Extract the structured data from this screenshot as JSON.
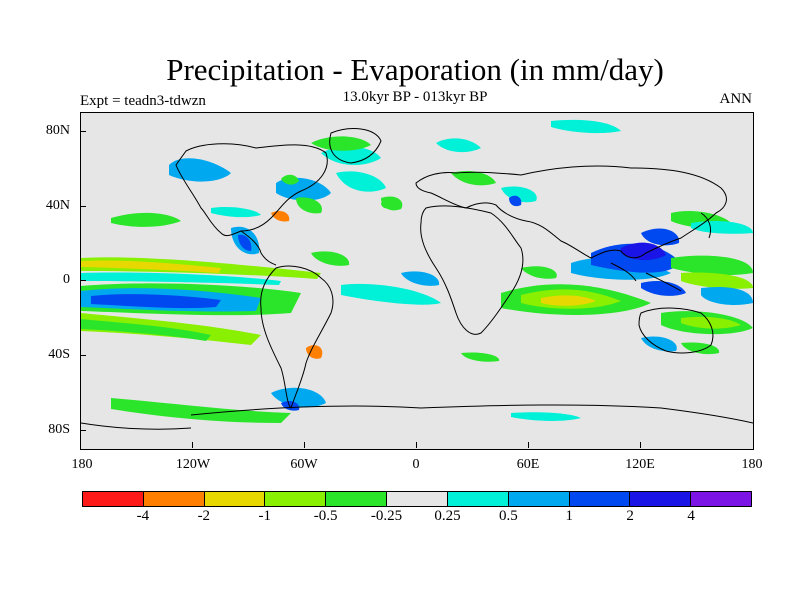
{
  "title": "Precipitation - Evaporation (in mm/day)",
  "subtitle": "13.0kyr BP - 013kyr BP",
  "expt_label": "Expt = teadn3-tdwzn",
  "season": "ANN",
  "map": {
    "lat_ticks": [
      "80N",
      "40N",
      "0",
      "40S",
      "80S"
    ],
    "lon_ticks": [
      "180",
      "120W",
      "60W",
      "0",
      "60E",
      "120E",
      "180"
    ],
    "background_color": "#e6e6e6"
  },
  "colorbar": {
    "colors": [
      "#ff1a1a",
      "#ff7f00",
      "#e6d800",
      "#88f000",
      "#2be52b",
      "#e6e6e6",
      "#00f0d8",
      "#00a8f0",
      "#0048f0",
      "#1a14e6",
      "#7d14e6"
    ],
    "labels": [
      "-4",
      "-2",
      "-1",
      "-0.5",
      "-0.25",
      "0.25",
      "0.5",
      "1",
      "2",
      "4"
    ]
  }
}
